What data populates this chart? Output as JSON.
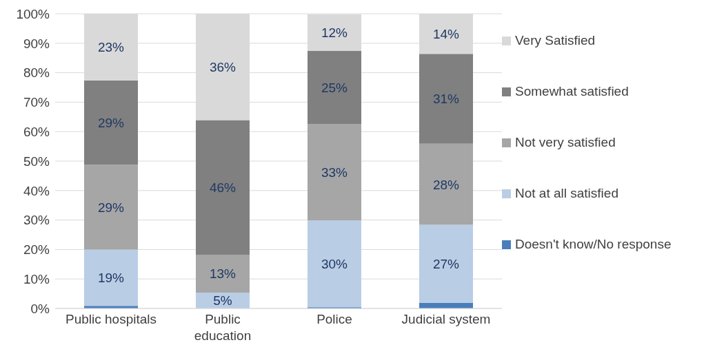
{
  "chart_data": {
    "type": "bar",
    "stacked": true,
    "categories": [
      "Public hospitals",
      "Public\neducation",
      "Police",
      "Judicial system"
    ],
    "series": [
      {
        "name": "Doesn't know/No response",
        "color": "#4a7ebb",
        "values": [
          0.9,
          0,
          0.4,
          1.9
        ],
        "value_labels": [
          null,
          null,
          null,
          null
        ]
      },
      {
        "name": "Not at all satisfied",
        "color": "#b9cde5",
        "values": [
          19.1,
          5.4,
          29.5,
          26.5
        ],
        "value_labels": [
          "19%",
          "5%",
          "30%",
          "27%"
        ]
      },
      {
        "name": "Not very satisfied",
        "color": "#a6a6a6",
        "values": [
          28.7,
          12.8,
          32.6,
          27.5
        ],
        "value_labels": [
          "29%",
          "13%",
          "33%",
          "28%"
        ]
      },
      {
        "name": "Somewhat satisfied",
        "color": "#808080",
        "values": [
          28.7,
          45.7,
          24.9,
          30.5
        ],
        "value_labels": [
          "29%",
          "46%",
          "25%",
          "31%"
        ]
      },
      {
        "name": "Very Satisfied",
        "color": "#d9d9d9",
        "values": [
          22.6,
          36.1,
          12.4,
          13.6
        ],
        "value_labels": [
          "23%",
          "36%",
          "12%",
          "14%"
        ]
      }
    ],
    "ylim": [
      0,
      100
    ],
    "yticks": [
      {
        "value": 0,
        "label": "0%"
      },
      {
        "value": 10,
        "label": "10%"
      },
      {
        "value": 20,
        "label": "20%"
      },
      {
        "value": 30,
        "label": "30%"
      },
      {
        "value": 40,
        "label": "40%"
      },
      {
        "value": 50,
        "label": "50%"
      },
      {
        "value": 60,
        "label": "60%"
      },
      {
        "value": 70,
        "label": "70%"
      },
      {
        "value": 80,
        "label": "80%"
      },
      {
        "value": 90,
        "label": "90%"
      },
      {
        "value": 100,
        "label": "100%"
      }
    ],
    "grid": "y",
    "legend": "right"
  }
}
